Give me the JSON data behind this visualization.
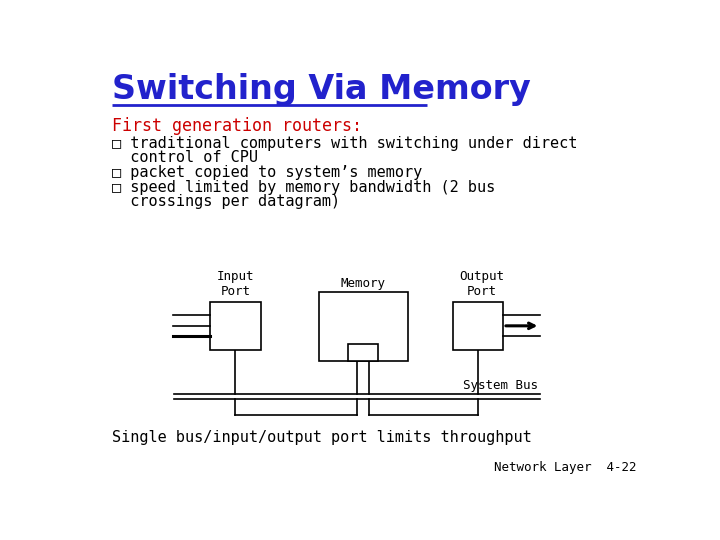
{
  "title": "Switching Via Memory",
  "title_color": "#2222CC",
  "bg_color": "#FFFFFF",
  "subtitle": "First generation routers:",
  "subtitle_color": "#CC0000",
  "bullet_color": "#000000",
  "diagram_labels": {
    "input_port": "Input\nPort",
    "memory": "Memory",
    "output_port": "Output\nPort",
    "system_bus": "System Bus"
  },
  "footer_left": "Single bus/input/output port limits throughput",
  "footer_right": "Network Layer  4-22"
}
